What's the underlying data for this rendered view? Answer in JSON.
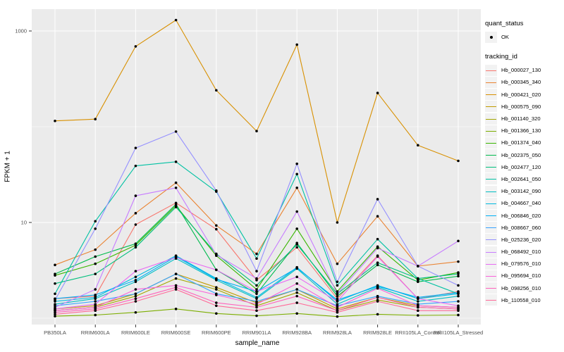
{
  "figure": {
    "background": "#FFFFFF",
    "panel_background": "#EBEBEB",
    "grid_color": "#FFFFFF",
    "tick_color": "#333333",
    "tick_label_color": "#4D4D4D",
    "point_color": "#000000",
    "legend_key_background": "#F2F2F2"
  },
  "chart_data": {
    "type": "line",
    "title": "",
    "xlabel": "sample_name",
    "ylabel": "FPKM + 1",
    "x_scale": "categorical",
    "y_scale": "log10",
    "y_axis_ticks": [
      {
        "label": "1000",
        "value": 1000
      },
      {
        "label": "10",
        "value": 10
      }
    ],
    "y_minor_gridlines": [
      100,
      1
    ],
    "ylim": [
      1,
      1500
    ],
    "grid": true,
    "legend_position": "right",
    "categories": [
      "PB350LA",
      "RRIM600LA",
      "RRIM600LE",
      "RRIM600SE",
      "RRIM600PE",
      "RRIM901LA",
      "RRIM928BA",
      "RRIM928LA",
      "RRIM928LE",
      "RRII105LA_Control",
      "RRII105LA_Stressed"
    ],
    "legend": {
      "quant_status": {
        "title": "quant_status",
        "entries": [
          {
            "label": "OK",
            "marker": "point"
          }
        ]
      },
      "tracking_id": {
        "title": "tracking_id"
      }
    },
    "series": [
      {
        "name": "Hb_000027_130",
        "color": "#F8766D",
        "values": [
          1.6,
          1.7,
          9.5,
          16,
          8.5,
          2.5,
          5.5,
          1.6,
          4.5,
          1.6,
          1.9
        ]
      },
      {
        "name": "Hb_000345_340",
        "color": "#EA8331",
        "values": [
          3.6,
          5.2,
          12.5,
          26,
          9.3,
          4.7,
          23,
          3.7,
          11.6,
          3.5,
          3.9
        ]
      },
      {
        "name": "Hb_000421_020",
        "color": "#D89000",
        "values": [
          115,
          120,
          690,
          1300,
          240,
          90,
          720,
          10,
          225,
          64,
          44
        ]
      },
      {
        "name": "Hb_000575_090",
        "color": "#C09B00",
        "values": [
          1.25,
          1.35,
          1.8,
          2.9,
          2.1,
          1.45,
          2.0,
          1.25,
          1.65,
          1.35,
          1.3
        ]
      },
      {
        "name": "Hb_001140_320",
        "color": "#A3A500",
        "values": [
          1.2,
          1.3,
          1.7,
          2.6,
          2.0,
          1.35,
          1.85,
          1.2,
          1.55,
          1.3,
          1.25
        ]
      },
      {
        "name": "Hb_001366_130",
        "color": "#7CAE00",
        "values": [
          1.05,
          1.08,
          1.15,
          1.25,
          1.12,
          1.06,
          1.12,
          1.04,
          1.1,
          1.07,
          1.08
        ]
      },
      {
        "name": "Hb_001374_040",
        "color": "#39B600",
        "values": [
          2.8,
          3.7,
          5.8,
          15,
          4.5,
          2.0,
          8.6,
          1.9,
          5.6,
          2.5,
          3.0
        ]
      },
      {
        "name": "Hb_002375_050",
        "color": "#00BB4E",
        "values": [
          2.9,
          4.4,
          6.0,
          15.5,
          3.2,
          1.8,
          6.1,
          1.7,
          3.6,
          2.4,
          2.75
        ]
      },
      {
        "name": "Hb_002477_120",
        "color": "#00BF7D",
        "values": [
          2.3,
          2.9,
          5.5,
          14.5,
          4.7,
          2.2,
          5.9,
          1.8,
          3.8,
          2.6,
          2.9
        ]
      },
      {
        "name": "Hb_002641_050",
        "color": "#00C1A3",
        "values": [
          1.8,
          10.3,
          39,
          43,
          21,
          4.2,
          32,
          2.2,
          6.7,
          2.6,
          1.8
        ]
      },
      {
        "name": "Hb_003142_090",
        "color": "#00BFC4",
        "values": [
          1.4,
          1.6,
          2.4,
          4.2,
          2.5,
          1.6,
          3.3,
          1.4,
          2.1,
          1.5,
          1.7
        ]
      },
      {
        "name": "Hb_004667_040",
        "color": "#00BAE0",
        "values": [
          1.5,
          1.65,
          2.7,
          4.5,
          2.6,
          1.65,
          3.4,
          1.5,
          2.2,
          1.6,
          1.8
        ]
      },
      {
        "name": "Hb_006846_020",
        "color": "#00B0F6",
        "values": [
          1.6,
          1.75,
          2.5,
          4.4,
          2.55,
          1.9,
          3.35,
          1.55,
          2.15,
          1.65,
          1.85
        ]
      },
      {
        "name": "Hb_008667_060",
        "color": "#35A2FF",
        "values": [
          1.35,
          1.5,
          1.8,
          2.9,
          1.8,
          1.5,
          2.0,
          1.35,
          1.7,
          1.4,
          1.5
        ]
      },
      {
        "name": "Hb_025236_020",
        "color": "#9590FF",
        "values": [
          1.55,
          8.6,
          60,
          89,
          21.5,
          3.1,
          41,
          2.4,
          17.5,
          3.5,
          2.2
        ]
      },
      {
        "name": "Hb_068492_010",
        "color": "#C77CFF",
        "values": [
          1.3,
          2.0,
          19,
          23,
          4.6,
          2.6,
          13,
          1.8,
          5.4,
          3.5,
          6.4
        ]
      },
      {
        "name": "Hb_079576_010",
        "color": "#E76BF3",
        "values": [
          1.25,
          1.4,
          3.1,
          4.3,
          3.2,
          1.9,
          2.7,
          1.5,
          4.4,
          1.6,
          1.35
        ]
      },
      {
        "name": "Hb_095694_010",
        "color": "#FA62DB",
        "values": [
          1.2,
          1.3,
          2.0,
          2.2,
          1.75,
          1.4,
          2.3,
          1.3,
          2.05,
          1.35,
          1.3
        ]
      },
      {
        "name": "Hb_098256_010",
        "color": "#FF62BC",
        "values": [
          1.15,
          1.25,
          1.6,
          2.1,
          1.45,
          1.3,
          1.7,
          1.2,
          1.65,
          1.3,
          1.25
        ]
      },
      {
        "name": "Hb_110558_010",
        "color": "#FF6A98",
        "values": [
          1.1,
          1.2,
          1.5,
          2.0,
          1.35,
          1.2,
          1.45,
          1.15,
          1.5,
          1.2,
          1.2
        ]
      }
    ]
  }
}
